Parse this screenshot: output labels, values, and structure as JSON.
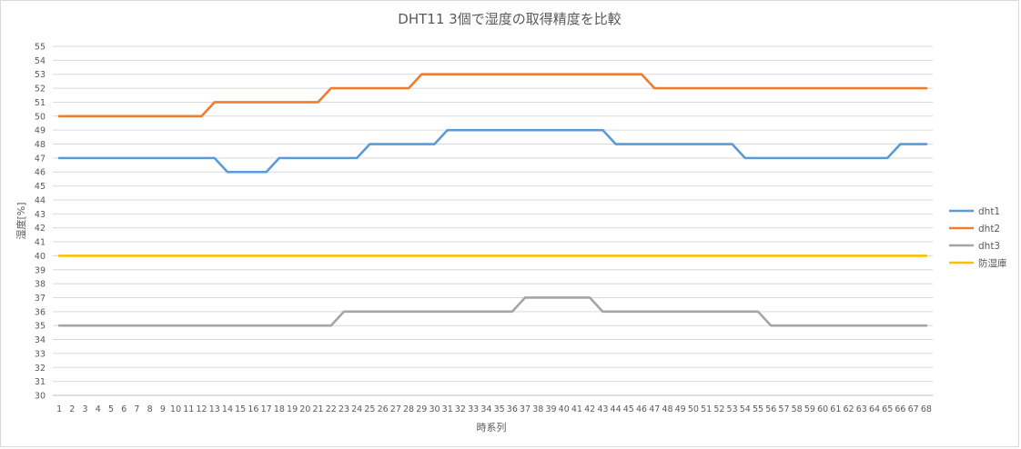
{
  "chart_data": {
    "type": "line",
    "title": "DHT11 3個で湿度の取得精度を比較",
    "xlabel": "時系列",
    "ylabel": "湿度[%]",
    "ylim": [
      30,
      55
    ],
    "ytick_step": 1,
    "grid": true,
    "legend_position": "right",
    "x": [
      1,
      2,
      3,
      4,
      5,
      6,
      7,
      8,
      9,
      10,
      11,
      12,
      13,
      14,
      15,
      16,
      17,
      18,
      19,
      20,
      21,
      22,
      23,
      24,
      25,
      26,
      27,
      28,
      29,
      30,
      31,
      32,
      33,
      34,
      35,
      36,
      37,
      38,
      39,
      40,
      41,
      42,
      43,
      44,
      45,
      46,
      47,
      48,
      49,
      50,
      51,
      52,
      53,
      54,
      55,
      56,
      57,
      58,
      59,
      60,
      61,
      62,
      63,
      64,
      65,
      66,
      67,
      68
    ],
    "series": [
      {
        "name": "dht1",
        "color": "#5b9bd5",
        "values": [
          47,
          47,
          47,
          47,
          47,
          47,
          47,
          47,
          47,
          47,
          47,
          47,
          47,
          46,
          46,
          46,
          46,
          47,
          47,
          47,
          47,
          47,
          47,
          47,
          48,
          48,
          48,
          48,
          48,
          48,
          49,
          49,
          49,
          49,
          49,
          49,
          49,
          49,
          49,
          49,
          49,
          49,
          49,
          48,
          48,
          48,
          48,
          48,
          48,
          48,
          48,
          48,
          48,
          47,
          47,
          47,
          47,
          47,
          47,
          47,
          47,
          47,
          47,
          47,
          47,
          48,
          48,
          48
        ]
      },
      {
        "name": "dht2",
        "color": "#ed7d31",
        "values": [
          50,
          50,
          50,
          50,
          50,
          50,
          50,
          50,
          50,
          50,
          50,
          50,
          51,
          51,
          51,
          51,
          51,
          51,
          51,
          51,
          51,
          52,
          52,
          52,
          52,
          52,
          52,
          52,
          53,
          53,
          53,
          53,
          53,
          53,
          53,
          53,
          53,
          53,
          53,
          53,
          53,
          53,
          53,
          53,
          53,
          53,
          52,
          52,
          52,
          52,
          52,
          52,
          52,
          52,
          52,
          52,
          52,
          52,
          52,
          52,
          52,
          52,
          52,
          52,
          52,
          52,
          52,
          52
        ]
      },
      {
        "name": "dht3",
        "color": "#a5a5a5",
        "values": [
          35,
          35,
          35,
          35,
          35,
          35,
          35,
          35,
          35,
          35,
          35,
          35,
          35,
          35,
          35,
          35,
          35,
          35,
          35,
          35,
          35,
          35,
          36,
          36,
          36,
          36,
          36,
          36,
          36,
          36,
          36,
          36,
          36,
          36,
          36,
          36,
          37,
          37,
          37,
          37,
          37,
          37,
          36,
          36,
          36,
          36,
          36,
          36,
          36,
          36,
          36,
          36,
          36,
          36,
          36,
          35,
          35,
          35,
          35,
          35,
          35,
          35,
          35,
          35,
          35,
          35,
          35,
          35
        ]
      },
      {
        "name": "防湿庫",
        "color": "#ffc000",
        "values": [
          40,
          40,
          40,
          40,
          40,
          40,
          40,
          40,
          40,
          40,
          40,
          40,
          40,
          40,
          40,
          40,
          40,
          40,
          40,
          40,
          40,
          40,
          40,
          40,
          40,
          40,
          40,
          40,
          40,
          40,
          40,
          40,
          40,
          40,
          40,
          40,
          40,
          40,
          40,
          40,
          40,
          40,
          40,
          40,
          40,
          40,
          40,
          40,
          40,
          40,
          40,
          40,
          40,
          40,
          40,
          40,
          40,
          40,
          40,
          40,
          40,
          40,
          40,
          40,
          40,
          40,
          40,
          40
        ]
      }
    ]
  }
}
